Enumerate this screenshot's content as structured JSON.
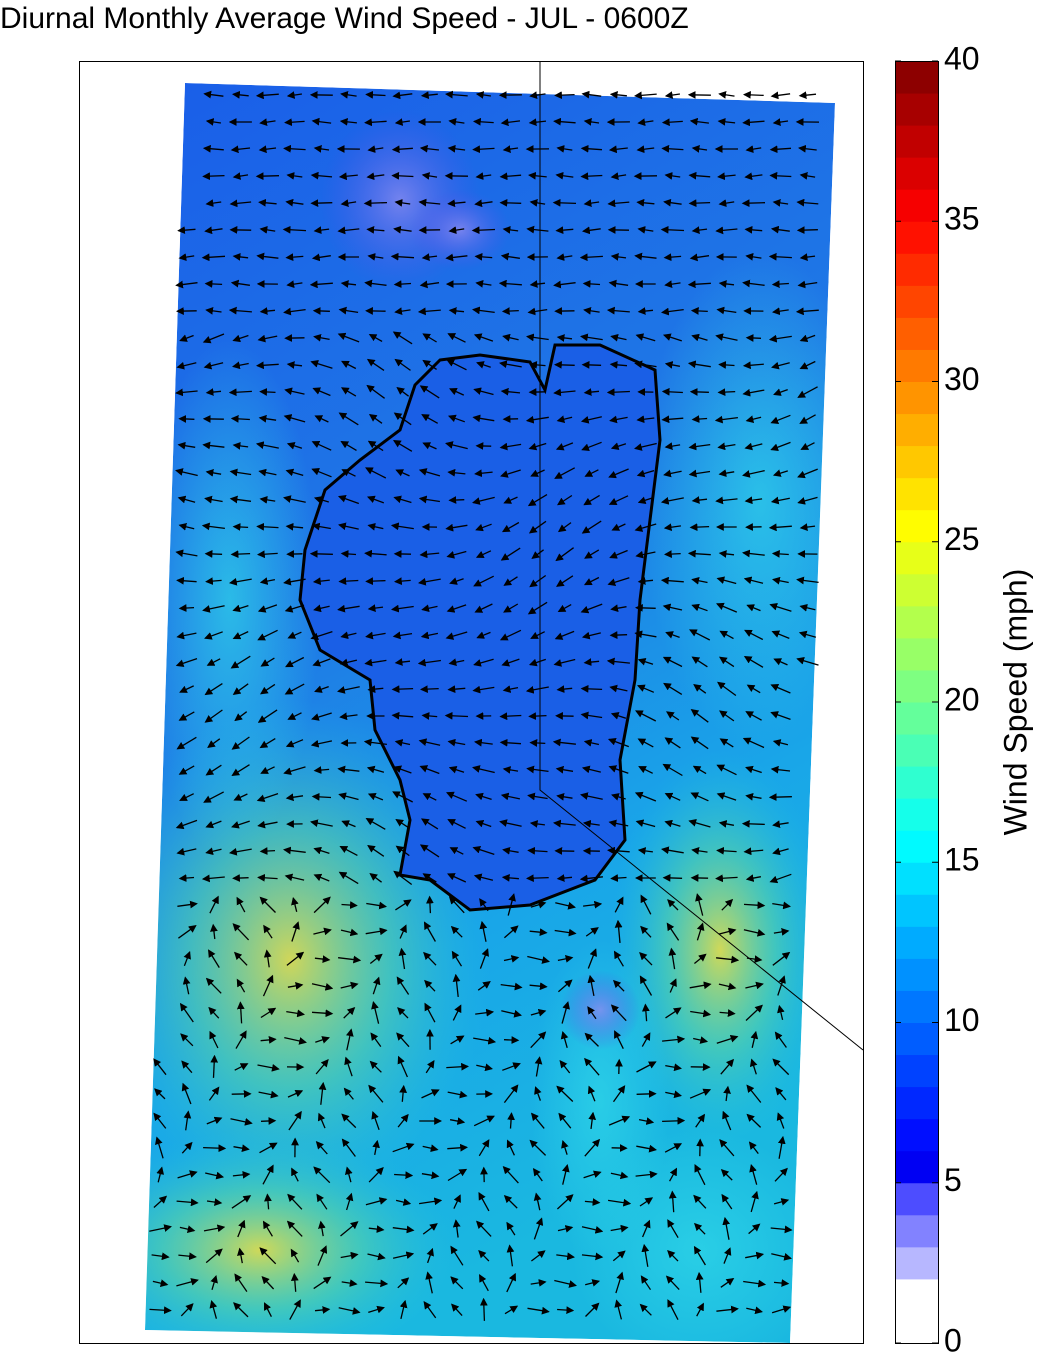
{
  "title": "Diurnal Monthly Average Wind Speed - JUL - 0600Z",
  "colorbar": {
    "label": "Wind Speed (mph)",
    "lim": [
      0,
      40
    ],
    "ticks": [
      0,
      5,
      10,
      15,
      20,
      25,
      30,
      35,
      40
    ]
  }
}
